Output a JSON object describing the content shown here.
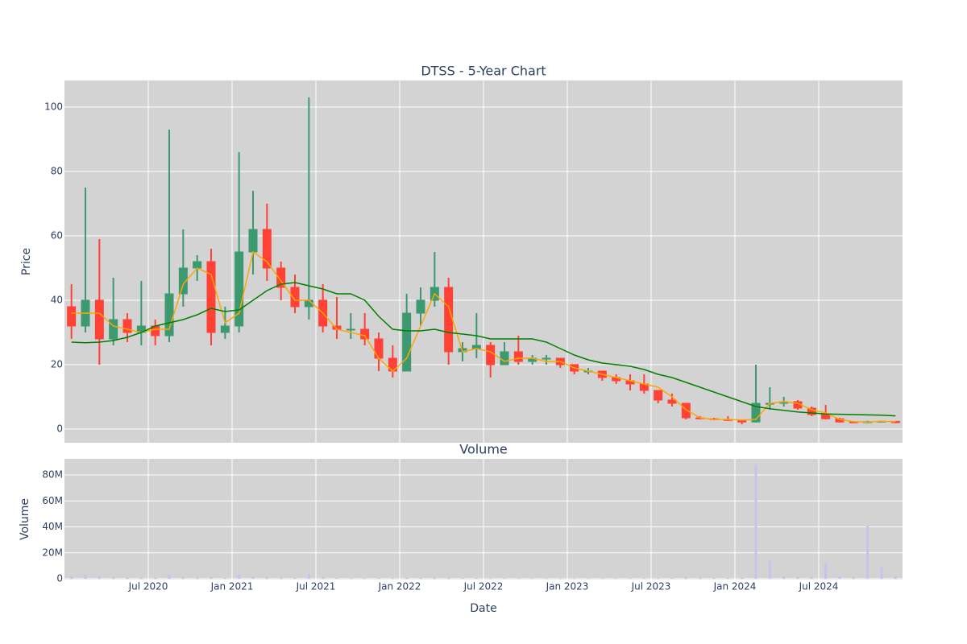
{
  "chart_data": [
    {
      "type": "candlestick",
      "title": "DTSS - 5-Year Chart",
      "ylabel": "Price",
      "x": [
        "2020-01",
        "2020-02",
        "2020-03",
        "2020-04",
        "2020-05",
        "2020-06",
        "2020-07",
        "2020-08",
        "2020-09",
        "2020-10",
        "2020-11",
        "2020-12",
        "2021-01",
        "2021-02",
        "2021-03",
        "2021-04",
        "2021-05",
        "2021-06",
        "2021-07",
        "2021-08",
        "2021-09",
        "2021-10",
        "2021-11",
        "2021-12",
        "2022-01",
        "2022-02",
        "2022-03",
        "2022-04",
        "2022-05",
        "2022-06",
        "2022-07",
        "2022-08",
        "2022-09",
        "2022-10",
        "2022-11",
        "2022-12",
        "2023-01",
        "2023-02",
        "2023-03",
        "2023-04",
        "2023-05",
        "2023-06",
        "2023-07",
        "2023-08",
        "2023-09",
        "2023-10",
        "2023-11",
        "2023-12",
        "2024-01",
        "2024-02",
        "2024-03",
        "2024-04",
        "2024-05",
        "2024-06",
        "2024-07",
        "2024-08",
        "2024-09",
        "2024-10",
        "2024-11",
        "2024-12"
      ],
      "open": [
        38,
        32,
        40,
        28,
        34,
        30,
        32,
        29,
        42,
        50,
        52,
        30,
        32,
        55,
        62,
        50,
        44,
        38,
        40,
        32,
        31,
        31,
        28,
        22,
        18,
        36,
        40,
        44,
        24,
        25,
        26,
        20,
        24,
        21,
        22,
        22,
        20,
        18,
        18,
        16,
        15,
        14,
        12,
        9,
        8,
        3.5,
        3.2,
        3,
        2.7,
        2.2,
        8,
        8,
        8.5,
        6.5,
        4.5,
        3.2,
        2.2,
        2,
        2.3,
        2.4
      ],
      "high": [
        45,
        75,
        59,
        47,
        36,
        46,
        34,
        93,
        62,
        54,
        56,
        38,
        86,
        74,
        70,
        52,
        48,
        103,
        45,
        41,
        36,
        36,
        30,
        26,
        42,
        44,
        55,
        47,
        27,
        36,
        27,
        27,
        29,
        23,
        23,
        22,
        20,
        19,
        18,
        17,
        17,
        17,
        12,
        11,
        8,
        4,
        3.5,
        4,
        3,
        20,
        13,
        10,
        9,
        7,
        7.5,
        3.5,
        2.5,
        2.6,
        2.6,
        2.5
      ],
      "low": [
        28,
        30,
        20,
        26,
        27,
        26,
        26,
        27,
        38,
        46,
        26,
        28,
        30,
        48,
        46,
        40,
        36,
        34,
        30,
        28,
        28,
        26,
        18,
        16,
        18,
        32,
        38,
        20,
        21,
        22,
        16,
        20,
        20,
        20,
        20,
        19,
        17,
        17,
        15,
        14,
        12,
        11,
        8,
        7,
        3,
        3,
        2.7,
        2.5,
        1.5,
        2,
        6,
        7,
        6,
        4,
        3,
        2,
        1.8,
        1.8,
        2,
        1.8
      ],
      "close": [
        32,
        40,
        28,
        34,
        30,
        32,
        29,
        42,
        50,
        52,
        30,
        32,
        55,
        62,
        50,
        44,
        38,
        40,
        32,
        31,
        31,
        28,
        22,
        18,
        36,
        40,
        44,
        24,
        25,
        26,
        20,
        24,
        21,
        22,
        22,
        20,
        18,
        18,
        16,
        15,
        14,
        12,
        9,
        8,
        3.5,
        3.2,
        3,
        2.7,
        2.2,
        8,
        8,
        8.5,
        6.5,
        4.5,
        3.2,
        2.2,
        2,
        2.3,
        2.4,
        2
      ],
      "increasing_color": "#3d9970",
      "decreasing_color": "#ff4136",
      "series": [
        {
          "color": "#ffa500",
          "values": [
            36,
            36,
            36,
            32,
            31,
            30,
            31,
            31,
            45,
            50,
            48,
            33,
            36,
            55,
            52,
            46,
            40,
            40,
            36,
            31,
            30,
            29,
            22,
            18,
            22,
            32,
            42,
            38,
            24,
            25,
            24,
            21,
            22,
            22,
            21,
            21,
            19,
            18,
            17,
            16,
            15,
            14,
            13,
            10,
            6,
            3.5,
            3,
            3,
            2.8,
            3,
            8,
            8.5,
            8,
            6,
            5,
            3,
            2.3,
            2.2,
            2.4,
            2.3
          ]
        },
        {
          "color": "#008000",
          "values": [
            27,
            26.8,
            27,
            27.5,
            28.5,
            30,
            32,
            33,
            34,
            35.5,
            37.5,
            36.5,
            37,
            40,
            43,
            45,
            45.5,
            44.5,
            43.5,
            42,
            42,
            40,
            35,
            31,
            30.5,
            30.5,
            31,
            30,
            29.5,
            29,
            28,
            28,
            28,
            28,
            27,
            25,
            23,
            21.5,
            20.5,
            20,
            19.5,
            18.5,
            17,
            16,
            14.5,
            13,
            11.5,
            10,
            8.5,
            7,
            6.3,
            5.8,
            5.3,
            5,
            4.7,
            4.6,
            4.5,
            4.4,
            4.3,
            4.1
          ]
        }
      ],
      "xlim": [
        "2020-01",
        "2025-01"
      ],
      "ylim": [
        -4.25,
        108.25
      ],
      "yticks": [
        0,
        20,
        40,
        60,
        80,
        100
      ],
      "grid": true
    },
    {
      "type": "bar",
      "title": "Volume",
      "ylabel": "Volume",
      "xlabel": "Date",
      "x": [
        "2020-01",
        "2020-02",
        "2020-03",
        "2020-04",
        "2020-05",
        "2020-06",
        "2020-07",
        "2020-08",
        "2020-09",
        "2020-10",
        "2020-11",
        "2020-12",
        "2021-01",
        "2021-02",
        "2021-03",
        "2021-04",
        "2021-05",
        "2021-06",
        "2021-07",
        "2021-08",
        "2021-09",
        "2021-10",
        "2021-11",
        "2021-12",
        "2022-01",
        "2022-02",
        "2022-03",
        "2022-04",
        "2022-05",
        "2022-06",
        "2022-07",
        "2022-08",
        "2022-09",
        "2022-10",
        "2022-11",
        "2022-12",
        "2023-01",
        "2023-02",
        "2023-03",
        "2023-04",
        "2023-05",
        "2023-06",
        "2023-07",
        "2023-08",
        "2023-09",
        "2023-10",
        "2023-11",
        "2023-12",
        "2024-01",
        "2024-02",
        "2024-03",
        "2024-04",
        "2024-05",
        "2024-06",
        "2024-07",
        "2024-08",
        "2024-09",
        "2024-10",
        "2024-11",
        "2024-12"
      ],
      "values": [
        2000000,
        3000000,
        2500000,
        1500000,
        1000000,
        1200000,
        1000000,
        3000000,
        1500000,
        1000000,
        1500000,
        800000,
        3000000,
        2000000,
        1500000,
        1000000,
        800000,
        4000000,
        1500000,
        600000,
        500000,
        500000,
        600000,
        500000,
        1000000,
        800000,
        1200000,
        800000,
        500000,
        600000,
        400000,
        400000,
        300000,
        300000,
        300000,
        300000,
        300000,
        300000,
        300000,
        300000,
        400000,
        500000,
        500000,
        600000,
        1500000,
        1000000,
        800000,
        800000,
        1000000,
        88000000,
        14000000,
        2000000,
        1500000,
        1500000,
        12000000,
        2000000,
        1500000,
        41000000,
        9000000,
        2000000
      ],
      "color": "#c4c4ee",
      "xlim": [
        "2020-01",
        "2025-01"
      ],
      "ylim": [
        -600000,
        92400000
      ],
      "xticks": [
        {
          "value": "2020-07",
          "label": "Jul 2020"
        },
        {
          "value": "2021-01",
          "label": "Jan 2021"
        },
        {
          "value": "2021-07",
          "label": "Jul 2021"
        },
        {
          "value": "2022-01",
          "label": "Jan 2022"
        },
        {
          "value": "2022-07",
          "label": "Jul 2022"
        },
        {
          "value": "2023-01",
          "label": "Jan 2023"
        },
        {
          "value": "2023-07",
          "label": "Jul 2023"
        },
        {
          "value": "2024-01",
          "label": "Jan 2024"
        },
        {
          "value": "2024-07",
          "label": "Jul 2024"
        }
      ],
      "yticks": [
        0,
        {
          "value": 20000000,
          "label": "20M"
        },
        {
          "value": 40000000,
          "label": "40M"
        },
        {
          "value": 60000000,
          "label": "60M"
        },
        {
          "value": 80000000,
          "label": "80M"
        }
      ],
      "grid": true
    }
  ]
}
